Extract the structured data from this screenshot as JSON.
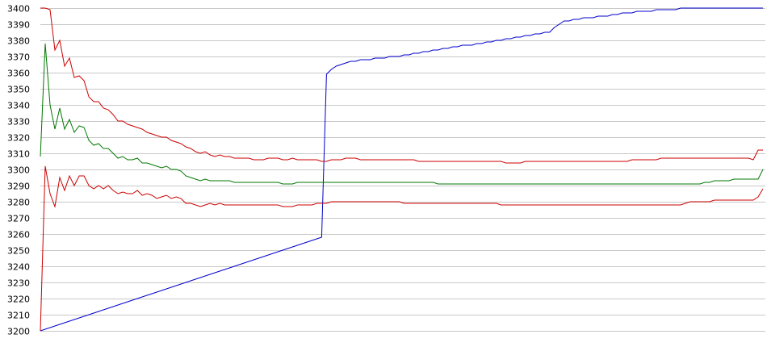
{
  "chart_data": {
    "type": "line",
    "title": "",
    "xlabel": "",
    "ylabel": "",
    "ylim": [
      3200,
      3400
    ],
    "y_ticks": [
      3400,
      3390,
      3380,
      3370,
      3360,
      3350,
      3340,
      3330,
      3320,
      3310,
      3300,
      3290,
      3280,
      3270,
      3260,
      3250,
      3240,
      3230,
      3220,
      3210,
      3200
    ],
    "grid": true,
    "x": [
      0,
      1,
      2,
      3,
      4,
      5,
      6,
      7,
      8,
      9,
      10,
      11,
      12,
      13,
      14,
      15,
      16,
      17,
      18,
      19,
      20,
      21,
      22,
      23,
      24,
      25,
      26,
      27,
      28,
      29,
      30,
      31,
      32,
      33,
      34,
      35,
      36,
      37,
      38,
      39,
      40,
      41,
      42,
      43,
      44,
      45,
      46,
      47,
      48,
      49,
      50,
      51,
      52,
      53,
      54,
      55,
      56,
      57,
      58,
      59,
      60,
      61,
      62,
      63,
      64,
      65,
      66,
      67,
      68,
      69,
      70,
      71,
      72,
      73,
      74,
      75,
      76,
      77,
      78,
      79,
      80,
      81,
      82,
      83,
      84,
      85,
      86,
      87,
      88,
      89,
      90,
      91,
      92,
      93,
      94,
      95,
      96,
      97,
      98,
      99,
      100,
      101,
      102,
      103,
      104,
      105,
      106,
      107,
      108,
      109,
      110,
      111,
      112,
      113,
      114,
      115,
      116,
      117,
      118,
      119,
      120,
      121,
      122,
      123,
      124,
      125,
      126,
      127,
      128,
      129,
      130,
      131,
      132,
      133,
      134,
      135,
      136,
      137,
      138,
      139,
      140,
      141,
      142,
      143,
      144,
      145,
      146,
      147,
      148,
      149
    ],
    "series": [
      {
        "color": "#0000cc",
        "values": [
          3200,
          3201,
          3202,
          3203,
          3204,
          3205,
          3206,
          3207,
          3208,
          3209,
          3210,
          3211,
          3212,
          3213,
          3214,
          3215,
          3216,
          3217,
          3218,
          3219,
          3220,
          3221,
          3222,
          3223,
          3224,
          3225,
          3226,
          3227,
          3228,
          3229,
          3230,
          3231,
          3232,
          3233,
          3234,
          3235,
          3236,
          3237,
          3238,
          3239,
          3240,
          3241,
          3242,
          3243,
          3244,
          3245,
          3246,
          3247,
          3248,
          3249,
          3250,
          3251,
          3252,
          3253,
          3254,
          3255,
          3256,
          3257,
          3258,
          3359,
          3362,
          3364,
          3365,
          3366,
          3367,
          3367,
          3368,
          3368,
          3368,
          3369,
          3369,
          3369,
          3370,
          3370,
          3370,
          3371,
          3371,
          3372,
          3372,
          3373,
          3373,
          3374,
          3374,
          3375,
          3375,
          3376,
          3376,
          3377,
          3377,
          3377,
          3378,
          3378,
          3379,
          3379,
          3380,
          3380,
          3381,
          3381,
          3382,
          3382,
          3383,
          3383,
          3384,
          3384,
          3385,
          3385,
          3388,
          3390,
          3392,
          3392,
          3393,
          3393,
          3394,
          3394,
          3394,
          3395,
          3395,
          3395,
          3396,
          3396,
          3397,
          3397,
          3397,
          3398,
          3398,
          3398,
          3398,
          3399,
          3399,
          3399,
          3399,
          3399,
          3400,
          3400,
          3400,
          3400,
          3400,
          3400,
          3400,
          3400,
          3400,
          3400,
          3400,
          3400,
          3400,
          3400,
          3400,
          3400,
          3400,
          3400
        ]
      },
      {
        "color": "#cc0000",
        "values": [
          3400,
          3400,
          3399,
          3374,
          3380,
          3364,
          3369,
          3357,
          3358,
          3355,
          3345,
          3342,
          3342,
          3338,
          3337,
          3334,
          3330,
          3330,
          3328,
          3327,
          3326,
          3325,
          3323,
          3322,
          3321,
          3320,
          3320,
          3318,
          3317,
          3316,
          3314,
          3313,
          3311,
          3310,
          3311,
          3309,
          3308,
          3309,
          3308,
          3308,
          3307,
          3307,
          3307,
          3307,
          3306,
          3306,
          3306,
          3307,
          3307,
          3307,
          3306,
          3306,
          3307,
          3306,
          3306,
          3306,
          3306,
          3306,
          3305,
          3305,
          3306,
          3306,
          3306,
          3307,
          3307,
          3307,
          3306,
          3306,
          3306,
          3306,
          3306,
          3306,
          3306,
          3306,
          3306,
          3306,
          3306,
          3306,
          3305,
          3305,
          3305,
          3305,
          3305,
          3305,
          3305,
          3305,
          3305,
          3305,
          3305,
          3305,
          3305,
          3305,
          3305,
          3305,
          3305,
          3305,
          3304,
          3304,
          3304,
          3304,
          3305,
          3305,
          3305,
          3305,
          3305,
          3305,
          3305,
          3305,
          3305,
          3305,
          3305,
          3305,
          3305,
          3305,
          3305,
          3305,
          3305,
          3305,
          3305,
          3305,
          3305,
          3305,
          3306,
          3306,
          3306,
          3306,
          3306,
          3306,
          3307,
          3307,
          3307,
          3307,
          3307,
          3307,
          3307,
          3307,
          3307,
          3307,
          3307,
          3307,
          3307,
          3307,
          3307,
          3307,
          3307,
          3307,
          3307,
          3306,
          3312,
          3312
        ]
      },
      {
        "color": "#007700",
        "values": [
          3308,
          3378,
          3340,
          3325,
          3338,
          3325,
          3331,
          3323,
          3327,
          3326,
          3318,
          3315,
          3316,
          3313,
          3313,
          3310,
          3307,
          3308,
          3306,
          3306,
          3307,
          3304,
          3304,
          3303,
          3302,
          3301,
          3302,
          3300,
          3300,
          3299,
          3296,
          3295,
          3294,
          3293,
          3294,
          3293,
          3293,
          3293,
          3293,
          3293,
          3292,
          3292,
          3292,
          3292,
          3292,
          3292,
          3292,
          3292,
          3292,
          3292,
          3291,
          3291,
          3291,
          3292,
          3292,
          3292,
          3292,
          3292,
          3292,
          3292,
          3292,
          3292,
          3292,
          3292,
          3292,
          3292,
          3292,
          3292,
          3292,
          3292,
          3292,
          3292,
          3292,
          3292,
          3292,
          3292,
          3292,
          3292,
          3292,
          3292,
          3292,
          3292,
          3291,
          3291,
          3291,
          3291,
          3291,
          3291,
          3291,
          3291,
          3291,
          3291,
          3291,
          3291,
          3291,
          3291,
          3291,
          3291,
          3291,
          3291,
          3291,
          3291,
          3291,
          3291,
          3291,
          3291,
          3291,
          3291,
          3291,
          3291,
          3291,
          3291,
          3291,
          3291,
          3291,
          3291,
          3291,
          3291,
          3291,
          3291,
          3291,
          3291,
          3291,
          3291,
          3291,
          3291,
          3291,
          3291,
          3291,
          3291,
          3291,
          3291,
          3291,
          3291,
          3291,
          3291,
          3291,
          3292,
          3292,
          3293,
          3293,
          3293,
          3293,
          3294,
          3294,
          3294,
          3294,
          3294,
          3294,
          3300
        ]
      },
      {
        "color": "#cc0000",
        "values": [
          3200,
          3302,
          3285,
          3277,
          3295,
          3287,
          3296,
          3290,
          3296,
          3296,
          3290,
          3288,
          3290,
          3288,
          3290,
          3287,
          3285,
          3286,
          3285,
          3285,
          3287,
          3284,
          3285,
          3284,
          3282,
          3283,
          3284,
          3282,
          3283,
          3282,
          3279,
          3279,
          3278,
          3277,
          3278,
          3279,
          3278,
          3279,
          3278,
          3278,
          3278,
          3278,
          3278,
          3278,
          3278,
          3278,
          3278,
          3278,
          3278,
          3278,
          3277,
          3277,
          3277,
          3278,
          3278,
          3278,
          3278,
          3279,
          3279,
          3279,
          3280,
          3280,
          3280,
          3280,
          3280,
          3280,
          3280,
          3280,
          3280,
          3280,
          3280,
          3280,
          3280,
          3280,
          3280,
          3279,
          3279,
          3279,
          3279,
          3279,
          3279,
          3279,
          3279,
          3279,
          3279,
          3279,
          3279,
          3279,
          3279,
          3279,
          3279,
          3279,
          3279,
          3279,
          3279,
          3278,
          3278,
          3278,
          3278,
          3278,
          3278,
          3278,
          3278,
          3278,
          3278,
          3278,
          3278,
          3278,
          3278,
          3278,
          3278,
          3278,
          3278,
          3278,
          3278,
          3278,
          3278,
          3278,
          3278,
          3278,
          3278,
          3278,
          3278,
          3278,
          3278,
          3278,
          3278,
          3278,
          3278,
          3278,
          3278,
          3278,
          3278,
          3279,
          3280,
          3280,
          3280,
          3280,
          3280,
          3281,
          3281,
          3281,
          3281,
          3281,
          3281,
          3281,
          3281,
          3281,
          3283,
          3288
        ]
      }
    ]
  }
}
